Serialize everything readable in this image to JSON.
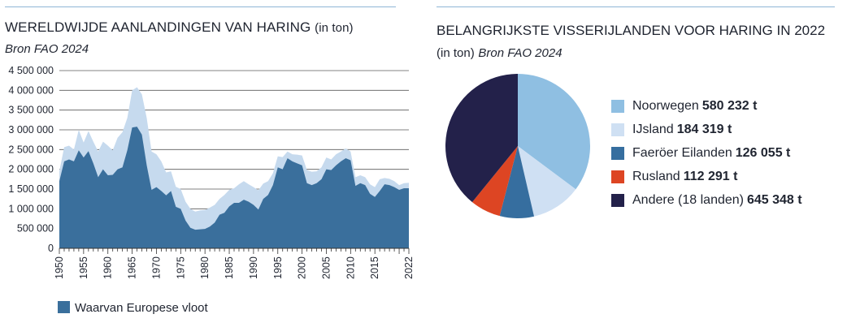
{
  "colors": {
    "rule": "#8fb6d6",
    "total_area": "#c6daee",
    "europe_area": "#3a6f9c",
    "pie": [
      "#8fbfe2",
      "#cfe0f3",
      "#366e9f",
      "#dd4523",
      "#23214a"
    ]
  },
  "left": {
    "title": "WERELDWIJDE AANLANDINGEN VAN HARING",
    "title_unit": "(in ton)",
    "source": "Bron FAO 2024",
    "legend": "Waarvan Europese vloot"
  },
  "right": {
    "title": "BELANGRIJKSTE VISSERIJLANDEN VOOR HARING IN 2022",
    "title_unit": "(in ton)",
    "source": "Bron FAO 2024"
  },
  "chart_data": [
    {
      "type": "area",
      "title": "WERELDWIJDE AANLANDINGEN VAN HARING (in ton)",
      "grid": true,
      "ylim": [
        0,
        4500000
      ],
      "xlim": [
        1950,
        2022
      ],
      "y_ticks": [
        "4 500 000",
        "4 000 000",
        "3 500 000",
        "3 000 000",
        "2 500 000",
        "2 000 000",
        "1 500 000",
        "1 000 000",
        "500 000",
        "0"
      ],
      "y_tick_values": [
        4500000,
        4000000,
        3500000,
        3000000,
        2500000,
        2000000,
        1500000,
        1000000,
        500000,
        0
      ],
      "x_ticks": [
        "1950",
        "1955",
        "1960",
        "1965",
        "1970",
        "1975",
        "1980",
        "1985",
        "1990",
        "1995",
        "2000",
        "2005",
        "2010",
        "2015",
        "2022"
      ],
      "x_tick_values": [
        1950,
        1955,
        1960,
        1965,
        1970,
        1975,
        1980,
        1985,
        1990,
        1995,
        2000,
        2005,
        2010,
        2015,
        2022
      ],
      "x": [
        1950,
        1951,
        1952,
        1953,
        1954,
        1955,
        1956,
        1957,
        1958,
        1959,
        1960,
        1961,
        1962,
        1963,
        1964,
        1965,
        1966,
        1967,
        1968,
        1969,
        1970,
        1971,
        1972,
        1973,
        1974,
        1975,
        1976,
        1977,
        1978,
        1979,
        1980,
        1981,
        1982,
        1983,
        1984,
        1985,
        1986,
        1987,
        1988,
        1989,
        1990,
        1991,
        1992,
        1993,
        1994,
        1995,
        1996,
        1997,
        1998,
        1999,
        2000,
        2001,
        2002,
        2003,
        2004,
        2005,
        2006,
        2007,
        2008,
        2009,
        2010,
        2011,
        2012,
        2013,
        2014,
        2015,
        2016,
        2017,
        2018,
        2019,
        2020,
        2021,
        2022
      ],
      "series": [
        {
          "values": [
            1950000,
            2560000,
            2600000,
            2500000,
            3000000,
            2680000,
            2970000,
            2700000,
            2450000,
            2700000,
            2600000,
            2480000,
            2800000,
            2940000,
            3300000,
            4000000,
            4080000,
            3900000,
            3300000,
            2450000,
            2380000,
            2200000,
            1920000,
            1950000,
            1560000,
            1500000,
            1180000,
            1000000,
            930000,
            960000,
            970000,
            1030000,
            1100000,
            1250000,
            1350000,
            1480000,
            1520000,
            1620000,
            1700000,
            1620000,
            1550000,
            1470000,
            1640000,
            1700000,
            1900000,
            2330000,
            2310000,
            2450000,
            2380000,
            2370000,
            2350000,
            1980000,
            1940000,
            1950000,
            2050000,
            2300000,
            2250000,
            2380000,
            2450000,
            2530000,
            2450000,
            1800000,
            1850000,
            1800000,
            1620000,
            1550000,
            1750000,
            1780000,
            1760000,
            1700000,
            1600000,
            1650000,
            1660000
          ]
        },
        {
          "name": "Waarvan Europese vloot",
          "values": [
            1700000,
            2200000,
            2250000,
            2200000,
            2480000,
            2300000,
            2460000,
            2150000,
            1800000,
            2000000,
            1850000,
            1860000,
            2000000,
            2050000,
            2480000,
            3060000,
            3080000,
            2880000,
            2100000,
            1480000,
            1550000,
            1450000,
            1340000,
            1450000,
            1050000,
            1000000,
            700000,
            520000,
            470000,
            480000,
            490000,
            550000,
            650000,
            850000,
            900000,
            1060000,
            1150000,
            1150000,
            1230000,
            1180000,
            1100000,
            980000,
            1250000,
            1350000,
            1600000,
            2050000,
            2000000,
            2280000,
            2200000,
            2150000,
            2100000,
            1650000,
            1600000,
            1650000,
            1750000,
            2000000,
            1980000,
            2100000,
            2200000,
            2280000,
            2230000,
            1580000,
            1650000,
            1600000,
            1380000,
            1300000,
            1450000,
            1620000,
            1600000,
            1550000,
            1480000,
            1520000,
            1520000
          ]
        }
      ]
    },
    {
      "type": "pie",
      "title": "BELANGRIJKSTE VISSERIJLANDEN VOOR HARING IN 2022 (in ton)",
      "slices": [
        {
          "label": "Noorwegen",
          "value_label": "580 232 t",
          "value": 580232
        },
        {
          "label": "IJsland",
          "value_label": "184 319 t",
          "value": 184319
        },
        {
          "label": "Faeröer Eilanden",
          "value_label": "126 055 t",
          "value": 126055
        },
        {
          "label": "Rusland",
          "value_label": "112 291 t",
          "value": 112291
        },
        {
          "label": "Andere (18 landen)",
          "value_label": "645 348 t",
          "value": 645348
        }
      ],
      "start": "top",
      "direction": "clockwise"
    }
  ]
}
